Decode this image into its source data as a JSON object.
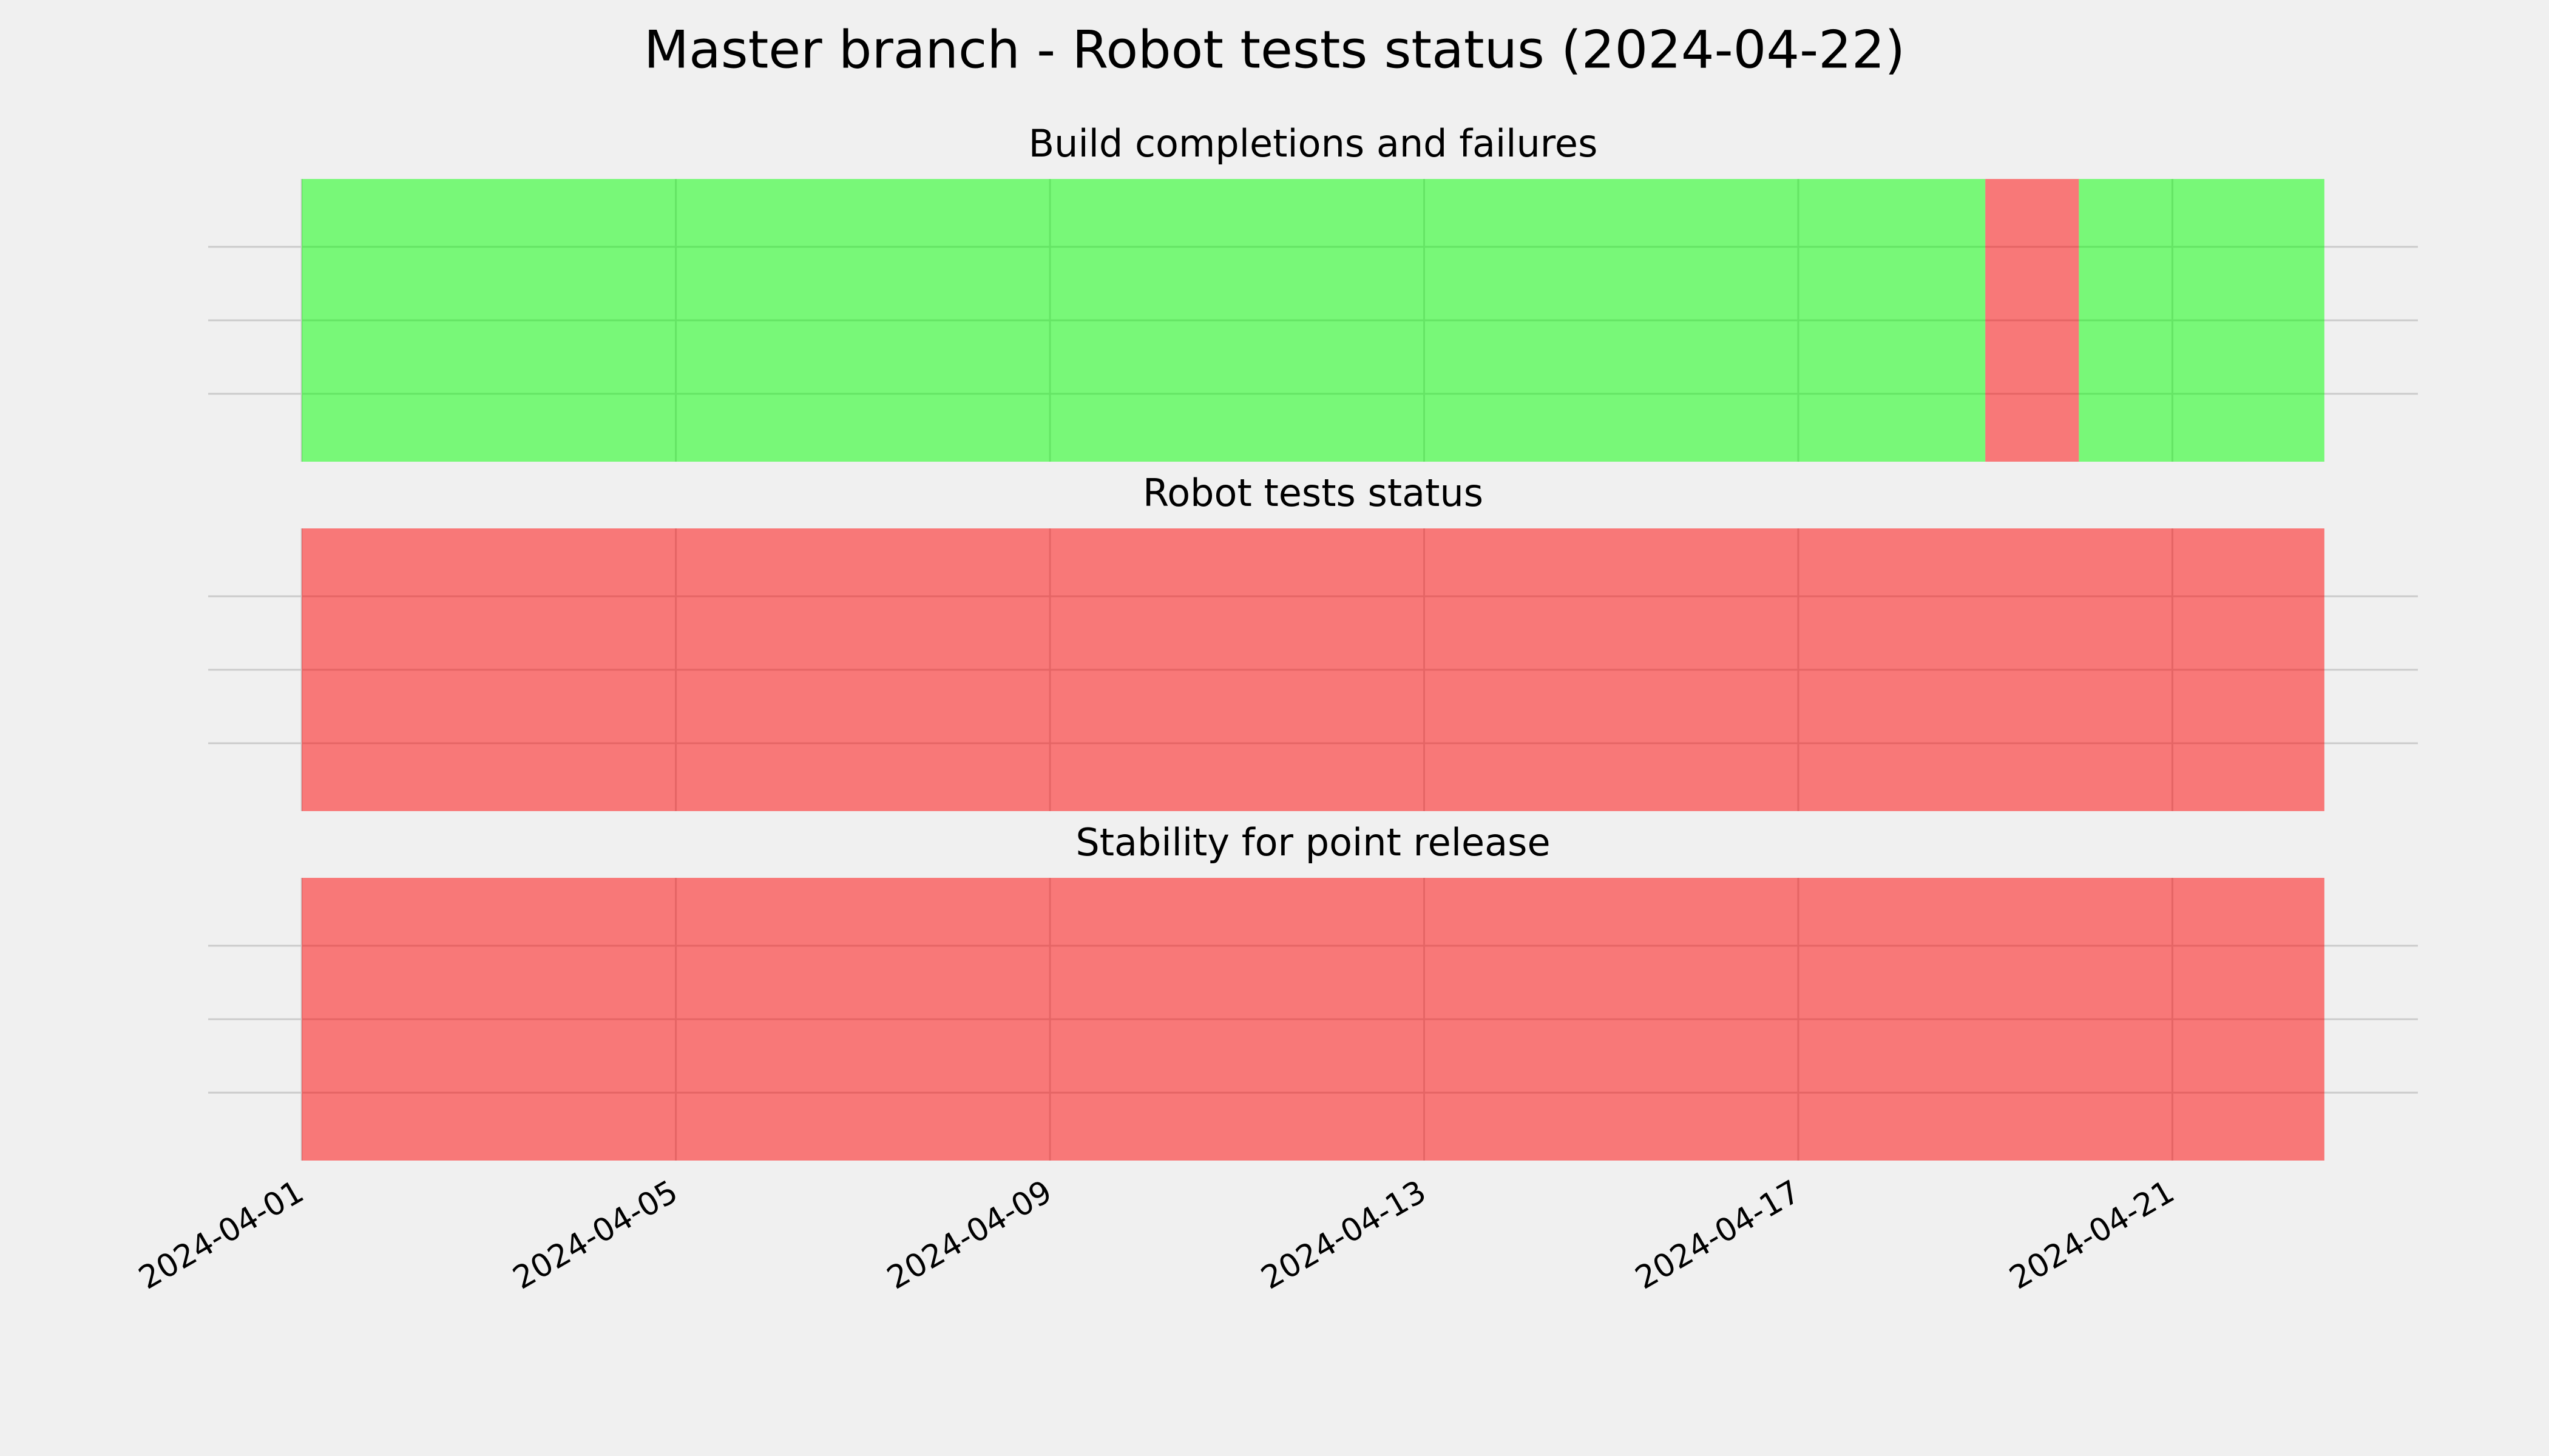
{
  "title": "Master branch - Robot tests status (2024-04-22)",
  "chart_data": [
    {
      "type": "timeline",
      "title": "Build completions and failures",
      "segments": [
        {
          "start": "2024-04-01",
          "end": "2024-04-19",
          "color": "#00ff00"
        },
        {
          "start": "2024-04-19",
          "end": "2024-04-20",
          "color": "#ff0000"
        },
        {
          "start": "2024-04-20",
          "end": "2024-04-22T15:00",
          "color": "#00ff00"
        }
      ],
      "alpha": 0.5,
      "grid": true,
      "xlim": [
        "2024-03-31",
        "2024-04-23T15:00"
      ],
      "xticks": [
        "2024-04-01",
        "2024-04-05",
        "2024-04-09",
        "2024-04-13",
        "2024-04-17",
        "2024-04-21"
      ]
    },
    {
      "type": "timeline",
      "title": "Robot tests status",
      "segments": [
        {
          "start": "2024-04-01",
          "end": "2024-04-22T15:00",
          "color": "#ff0000"
        }
      ],
      "alpha": 0.5,
      "grid": true,
      "xlim": [
        "2024-03-31",
        "2024-04-23T15:00"
      ],
      "xticks": [
        "2024-04-01",
        "2024-04-05",
        "2024-04-09",
        "2024-04-13",
        "2024-04-17",
        "2024-04-21"
      ]
    },
    {
      "type": "timeline",
      "title": "Stability for point release",
      "segments": [
        {
          "start": "2024-04-01",
          "end": "2024-04-22T15:00",
          "color": "#ff0000"
        }
      ],
      "alpha": 0.5,
      "grid": true,
      "xlim": [
        "2024-03-31",
        "2024-04-23T15:00"
      ],
      "xticks": [
        "2024-04-01",
        "2024-04-05",
        "2024-04-09",
        "2024-04-13",
        "2024-04-17",
        "2024-04-21"
      ]
    }
  ]
}
